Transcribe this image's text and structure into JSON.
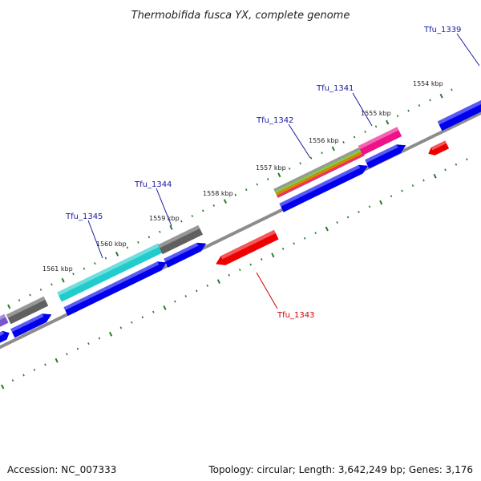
{
  "title": "Thermobifida fusca YX, complete genome",
  "footer": {
    "accession": "Accession: NC_007333",
    "summary": "Topology: circular; Length: 3,642,249 bp; Genes: 3,176"
  },
  "colors": {
    "backbone": "#8c8c8c",
    "tick": "#2a7a2a",
    "label_blue": "#1a1aa0",
    "label_red": "#cc0000",
    "cds_blue": "#0000ee",
    "cds_red": "#ee0000",
    "cds_cyan": "#22cccc",
    "cds_gray": "#606060",
    "cds_magenta": "#ee1188",
    "cds_purple": "#7755cc"
  },
  "ticks": [
    {
      "label": "1554 kbp"
    },
    {
      "label": "1555 kbp"
    },
    {
      "label": "1556 kbp"
    },
    {
      "label": "1557 kbp"
    },
    {
      "label": "1558 kbp"
    },
    {
      "label": "1559 kbp"
    },
    {
      "label": "1560 kbp"
    },
    {
      "label": "1561 kbp"
    }
  ],
  "gene_labels": [
    {
      "name": "Tfu_1339",
      "color": "#1a1aa0"
    },
    {
      "name": "Tfu_1341",
      "color": "#1a1aa0"
    },
    {
      "name": "Tfu_1342",
      "color": "#1a1aa0"
    },
    {
      "name": "Tfu_1344",
      "color": "#1a1aa0"
    },
    {
      "name": "Tfu_1345",
      "color": "#1a1aa0"
    },
    {
      "name": "Tfu_1343",
      "color": "#cc0000"
    }
  ]
}
